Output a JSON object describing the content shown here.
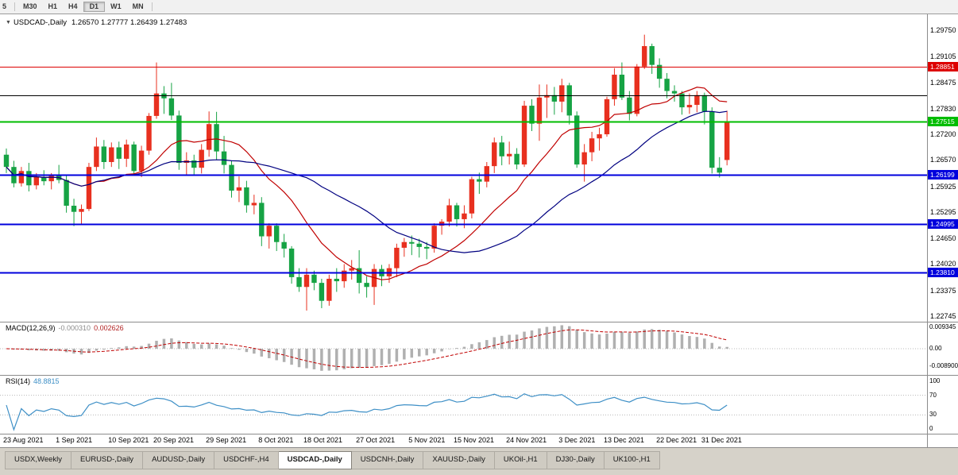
{
  "toolbar": {
    "buttons": [
      "5",
      "M30",
      "H1",
      "H4",
      "D1",
      "W1",
      "MN"
    ],
    "active": "D1"
  },
  "chart": {
    "symbol": "USDCAD-,Daily",
    "ohlc": "1.26570 1.27777 1.26439 1.27483",
    "collapse_arrow": "▼"
  },
  "macd": {
    "label": "MACD(12,26,9)",
    "value_main": "-0.000310",
    "value_signal": "0.002626",
    "axis_labels": [
      "0.009345",
      "0.00",
      "-0.008900"
    ]
  },
  "rsi": {
    "label": "RSI(14)",
    "value": "48.8815",
    "axis_labels": [
      "100",
      "70",
      "30",
      "0"
    ]
  },
  "tabs": [
    "USDX,Weekly",
    "EURUSD-,Daily",
    "AUDUSD-,Daily",
    "USDCHF-,H4",
    "USDCAD-,Daily",
    "USDCNH-,Daily",
    "XAUUSD-,Daily",
    "UKOil-,H1",
    "DJ30-,Daily",
    "UK100-,H1"
  ],
  "active_tab_index": 4,
  "chart_data": {
    "type": "candlestick",
    "symbol": "USDCAD",
    "period": "Daily",
    "y_ticks": [
      "1.29750",
      "1.29105",
      "1.28475",
      "1.27830",
      "1.27200",
      "1.26570",
      "1.25925",
      "1.25295",
      "1.24650",
      "1.24020",
      "1.23375",
      "1.22745"
    ],
    "date_labels": [
      {
        "i": 0,
        "t": "23 Aug 2021"
      },
      {
        "i": 7,
        "t": "1 Sep 2021"
      },
      {
        "i": 14,
        "t": "10 Sep 2021"
      },
      {
        "i": 20,
        "t": "20 Sep 2021"
      },
      {
        "i": 27,
        "t": "29 Sep 2021"
      },
      {
        "i": 34,
        "t": "8 Oct 2021"
      },
      {
        "i": 40,
        "t": "18 Oct 2021"
      },
      {
        "i": 47,
        "t": "27 Oct 2021"
      },
      {
        "i": 54,
        "t": "5 Nov 2021"
      },
      {
        "i": 60,
        "t": "15 Nov 2021"
      },
      {
        "i": 67,
        "t": "24 Nov 2021"
      },
      {
        "i": 74,
        "t": "3 Dec 2021"
      },
      {
        "i": 80,
        "t": "13 Dec 2021"
      },
      {
        "i": 87,
        "t": "22 Dec 2021"
      },
      {
        "i": 93,
        "t": "31 Dec 2021"
      }
    ],
    "hlines": [
      {
        "price": 1.28851,
        "color": "#dd0000",
        "label": "1.28851",
        "width": 1
      },
      {
        "price": 1.2815,
        "color": "#000000",
        "label": null,
        "width": 1
      },
      {
        "price": 1.27515,
        "color": "#00bd00",
        "label": "1.27515",
        "width": 2
      },
      {
        "price": 1.26199,
        "color": "#0000dd",
        "label": "1.26199",
        "width": 2
      },
      {
        "price": 1.24995,
        "color": "#0000dd",
        "label": "1.24995",
        "width": 2
      },
      {
        "price": 1.2381,
        "color": "#0000dd",
        "label": "1.23810",
        "width": 2
      }
    ],
    "moving_averages": [
      {
        "period": 13,
        "color": "#c00000"
      },
      {
        "period": 30,
        "color": "#000080"
      }
    ],
    "colors": {
      "bull": "#e8301f",
      "bear": "#16a344",
      "macd_hist": "#b0b0b0",
      "macd_signal": "#c00000",
      "rsi_line": "#3d8fc6",
      "level_dotted": "#b8b8b8"
    },
    "indicators": {
      "macd": {
        "fast": 12,
        "slow": 26,
        "signal": 9,
        "current_main": -0.00031,
        "current_signal": 0.002626
      },
      "rsi": {
        "period": 14,
        "current": 48.8815,
        "levels": [
          70,
          30
        ]
      }
    },
    "ohlc": [
      [
        1.267,
        1.2685,
        1.2625,
        1.264
      ],
      [
        1.264,
        1.2655,
        1.259,
        1.26
      ],
      [
        1.26,
        1.264,
        1.2592,
        1.263
      ],
      [
        1.263,
        1.265,
        1.258,
        1.2595
      ],
      [
        1.2595,
        1.2625,
        1.2585,
        1.2615
      ],
      [
        1.2615,
        1.2632,
        1.2595,
        1.2605
      ],
      [
        1.2605,
        1.2625,
        1.2585,
        1.2618
      ],
      [
        1.2618,
        1.2645,
        1.26,
        1.2608
      ],
      [
        1.2608,
        1.262,
        1.2528,
        1.2545
      ],
      [
        1.2545,
        1.2562,
        1.2495,
        1.253
      ],
      [
        1.253,
        1.2548,
        1.25,
        1.2537
      ],
      [
        1.2537,
        1.265,
        1.2532,
        1.264
      ],
      [
        1.264,
        1.2712,
        1.263,
        1.269
      ],
      [
        1.269,
        1.2706,
        1.2635,
        1.2652
      ],
      [
        1.2652,
        1.27,
        1.264,
        1.2688
      ],
      [
        1.2688,
        1.2702,
        1.2635,
        1.266
      ],
      [
        1.266,
        1.2707,
        1.264,
        1.2695
      ],
      [
        1.2695,
        1.2702,
        1.2618,
        1.263
      ],
      [
        1.263,
        1.2692,
        1.2615,
        1.268
      ],
      [
        1.268,
        1.2772,
        1.267,
        1.2765
      ],
      [
        1.2765,
        1.2896,
        1.2758,
        1.282
      ],
      [
        1.282,
        1.2838,
        1.277,
        1.2808
      ],
      [
        1.2808,
        1.2846,
        1.2755,
        1.2766
      ],
      [
        1.2766,
        1.2778,
        1.2633,
        1.265
      ],
      [
        1.265,
        1.2676,
        1.2618,
        1.2656
      ],
      [
        1.2656,
        1.267,
        1.262,
        1.2638
      ],
      [
        1.2638,
        1.2696,
        1.2624,
        1.2682
      ],
      [
        1.2682,
        1.2776,
        1.2665,
        1.2745
      ],
      [
        1.2745,
        1.2775,
        1.2658,
        1.2678
      ],
      [
        1.2678,
        1.2716,
        1.2624,
        1.2645
      ],
      [
        1.2645,
        1.2656,
        1.2565,
        1.2582
      ],
      [
        1.2582,
        1.2617,
        1.2554,
        1.259
      ],
      [
        1.259,
        1.2606,
        1.2528,
        1.2546
      ],
      [
        1.2546,
        1.2572,
        1.2524,
        1.2552
      ],
      [
        1.2552,
        1.2566,
        1.2446,
        1.247
      ],
      [
        1.247,
        1.2502,
        1.244,
        1.2496
      ],
      [
        1.2496,
        1.2502,
        1.2434,
        1.2456
      ],
      [
        1.2456,
        1.2476,
        1.2418,
        1.244
      ],
      [
        1.244,
        1.2446,
        1.2354,
        1.237
      ],
      [
        1.237,
        1.2392,
        1.2334,
        1.2346
      ],
      [
        1.2346,
        1.2392,
        1.2288,
        1.2376
      ],
      [
        1.2376,
        1.2386,
        1.2338,
        1.2356
      ],
      [
        1.2356,
        1.2366,
        1.2294,
        1.2312
      ],
      [
        1.2312,
        1.2376,
        1.23,
        1.2366
      ],
      [
        1.2366,
        1.2392,
        1.2334,
        1.236
      ],
      [
        1.236,
        1.2402,
        1.2344,
        1.2386
      ],
      [
        1.2386,
        1.2412,
        1.2364,
        1.2392
      ],
      [
        1.2392,
        1.2436,
        1.233,
        1.2356
      ],
      [
        1.2356,
        1.2372,
        1.232,
        1.2346
      ],
      [
        1.2346,
        1.2402,
        1.2302,
        1.239
      ],
      [
        1.239,
        1.24,
        1.2348,
        1.2372
      ],
      [
        1.2372,
        1.2402,
        1.2356,
        1.2392
      ],
      [
        1.2392,
        1.2452,
        1.237,
        1.2442
      ],
      [
        1.2442,
        1.2466,
        1.242,
        1.2456
      ],
      [
        1.2456,
        1.2472,
        1.2424,
        1.2452
      ],
      [
        1.2452,
        1.2464,
        1.2418,
        1.2444
      ],
      [
        1.2444,
        1.2456,
        1.2414,
        1.244
      ],
      [
        1.244,
        1.2502,
        1.243,
        1.2496
      ],
      [
        1.2496,
        1.2512,
        1.2474,
        1.2506
      ],
      [
        1.2506,
        1.2562,
        1.2494,
        1.2546
      ],
      [
        1.2546,
        1.2552,
        1.2494,
        1.2512
      ],
      [
        1.2512,
        1.2546,
        1.249,
        1.2526
      ],
      [
        1.2526,
        1.2616,
        1.2514,
        1.261
      ],
      [
        1.261,
        1.2626,
        1.2574,
        1.2604
      ],
      [
        1.2604,
        1.2652,
        1.259,
        1.2642
      ],
      [
        1.2642,
        1.2712,
        1.2625,
        1.27
      ],
      [
        1.27,
        1.2716,
        1.2644,
        1.2666
      ],
      [
        1.2666,
        1.2702,
        1.2646,
        1.2672
      ],
      [
        1.2672,
        1.2686,
        1.2634,
        1.2646
      ],
      [
        1.2646,
        1.2802,
        1.264,
        1.279
      ],
      [
        1.279,
        1.2806,
        1.2728,
        1.2746
      ],
      [
        1.2746,
        1.2842,
        1.2704,
        1.281
      ],
      [
        1.281,
        1.2842,
        1.276,
        1.2816
      ],
      [
        1.2816,
        1.2836,
        1.2768,
        1.28
      ],
      [
        1.28,
        1.2856,
        1.2774,
        1.284
      ],
      [
        1.284,
        1.2846,
        1.2744,
        1.2766
      ],
      [
        1.2766,
        1.2776,
        1.2638,
        1.2646
      ],
      [
        1.2646,
        1.2696,
        1.2604,
        1.2676
      ],
      [
        1.2676,
        1.2726,
        1.2654,
        1.271
      ],
      [
        1.271,
        1.2736,
        1.268,
        1.272
      ],
      [
        1.272,
        1.2812,
        1.2714,
        1.2806
      ],
      [
        1.2806,
        1.2882,
        1.279,
        1.2866
      ],
      [
        1.2866,
        1.2896,
        1.2804,
        1.281
      ],
      [
        1.281,
        1.2826,
        1.2754,
        1.277
      ],
      [
        1.277,
        1.2892,
        1.2764,
        1.2886
      ],
      [
        1.2886,
        1.2964,
        1.288,
        1.2936
      ],
      [
        1.2936,
        1.2942,
        1.2868,
        1.289
      ],
      [
        1.289,
        1.2906,
        1.2834,
        1.2856
      ],
      [
        1.2856,
        1.287,
        1.2808,
        1.2826
      ],
      [
        1.2826,
        1.284,
        1.28,
        1.282
      ],
      [
        1.282,
        1.2826,
        1.2768,
        1.2786
      ],
      [
        1.2786,
        1.282,
        1.277,
        1.2792
      ],
      [
        1.2792,
        1.2826,
        1.2774,
        1.2816
      ],
      [
        1.2816,
        1.2822,
        1.2744,
        1.2776
      ],
      [
        1.2776,
        1.2786,
        1.2624,
        1.2638
      ],
      [
        1.2638,
        1.2664,
        1.2614,
        1.2626
      ],
      [
        1.2657,
        1.27777,
        1.26439,
        1.27483
      ]
    ]
  }
}
